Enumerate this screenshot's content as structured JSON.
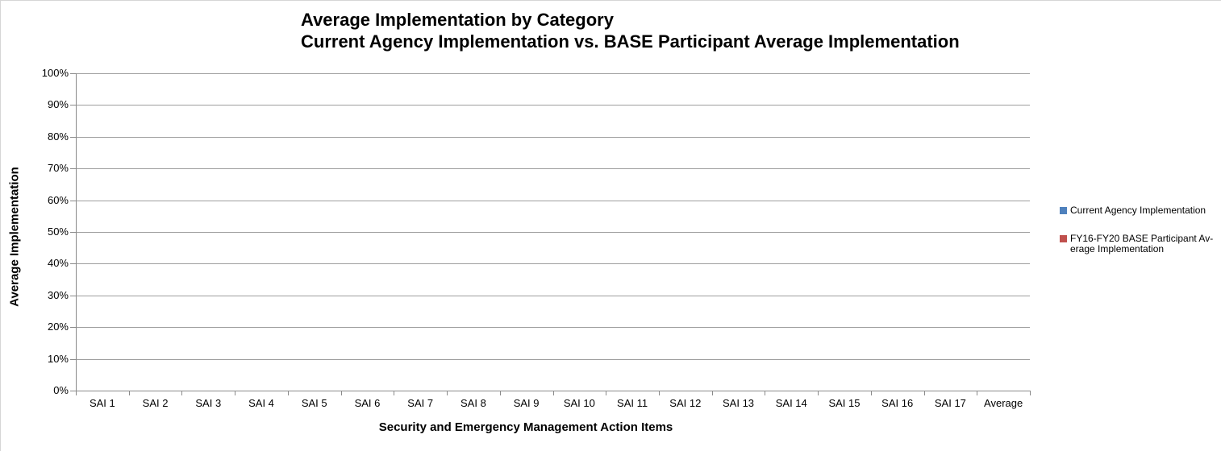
{
  "chart_data": {
    "type": "bar",
    "title_lines": [
      "Average Implementation by Category",
      "Current Agency Implementation vs. BASE Participant Average Implementation"
    ],
    "xlabel": "Security and Emergency Management Action Items",
    "ylabel": "Average Implementation",
    "categories": [
      "SAI 1",
      "SAI 2",
      "SAI 3",
      "SAI 4",
      "SAI 5",
      "SAI 6",
      "SAI 7",
      "SAI 8",
      "SAI 9",
      "SAI 10",
      "SAI 11",
      "SAI 12",
      "SAI 13",
      "SAI 14",
      "SAI 15",
      "SAI 16",
      "SAI 17",
      "Average"
    ],
    "series": [
      {
        "name": "Current Agency Implementation",
        "color": "#4F81BD",
        "values": [
          0,
          0,
          0,
          0,
          0,
          0,
          0,
          0,
          0,
          0,
          0,
          0,
          0,
          0,
          0,
          0,
          0,
          0
        ]
      },
      {
        "name": "FY16-FY20 BASE Participant Average Implementation",
        "color": "#C0504D",
        "values": [
          0,
          0,
          0,
          0,
          0,
          0,
          0,
          0,
          0,
          0,
          0,
          0,
          0,
          0,
          0,
          0,
          0,
          0
        ]
      }
    ],
    "ylim": [
      0,
      100
    ],
    "ytick_step": 10,
    "ytick_labels": [
      "0%",
      "10%",
      "20%",
      "30%",
      "40%",
      "50%",
      "60%",
      "70%",
      "80%",
      "90%",
      "100%"
    ],
    "grid": "horizontal",
    "legend_position": "right",
    "legend_items": [
      {
        "color": "#4F81BD",
        "lines": [
          "Current Agency Implementation"
        ]
      },
      {
        "color": "#C0504D",
        "lines": [
          "FY16-FY20 BASE Participant Av-",
          "erage Implementation"
        ]
      }
    ]
  },
  "colors": {
    "background": "#ffffff",
    "gridline": "#9e9e9e",
    "axis": "#8a8a8a",
    "text": "#000000",
    "frame_border": "#d6d6d6"
  }
}
